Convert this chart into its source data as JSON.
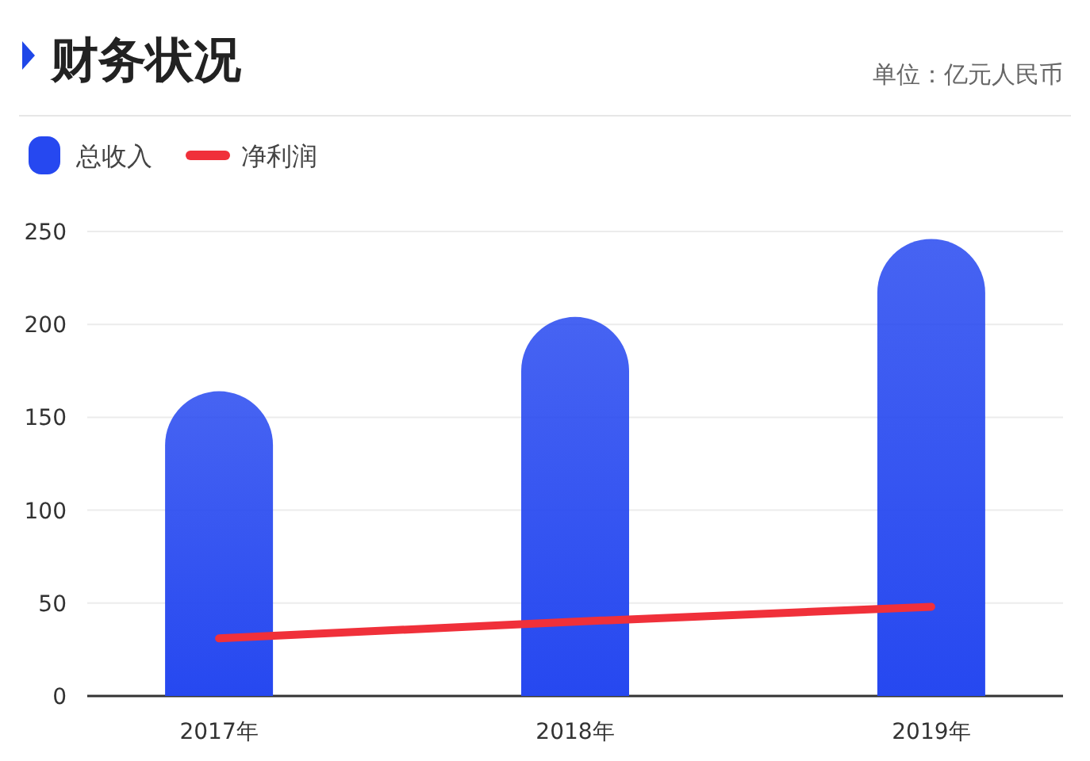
{
  "chart_data": {
    "type": "bar",
    "title": "财务状况",
    "subtitle": "单位：亿元人民币",
    "categories": [
      "2017年",
      "2018年",
      "2019年"
    ],
    "series": [
      {
        "name": "总收入",
        "color": "#2648f0",
        "values": [
          164,
          204,
          246
        ]
      },
      {
        "name": "净利润",
        "type": "line",
        "color": "#f0303a",
        "values": [
          31,
          40,
          48
        ]
      }
    ],
    "ylim": [
      0,
      250
    ],
    "yticks": [
      0,
      50,
      100,
      150,
      200,
      250
    ],
    "grid": "y",
    "legend": "top left"
  }
}
